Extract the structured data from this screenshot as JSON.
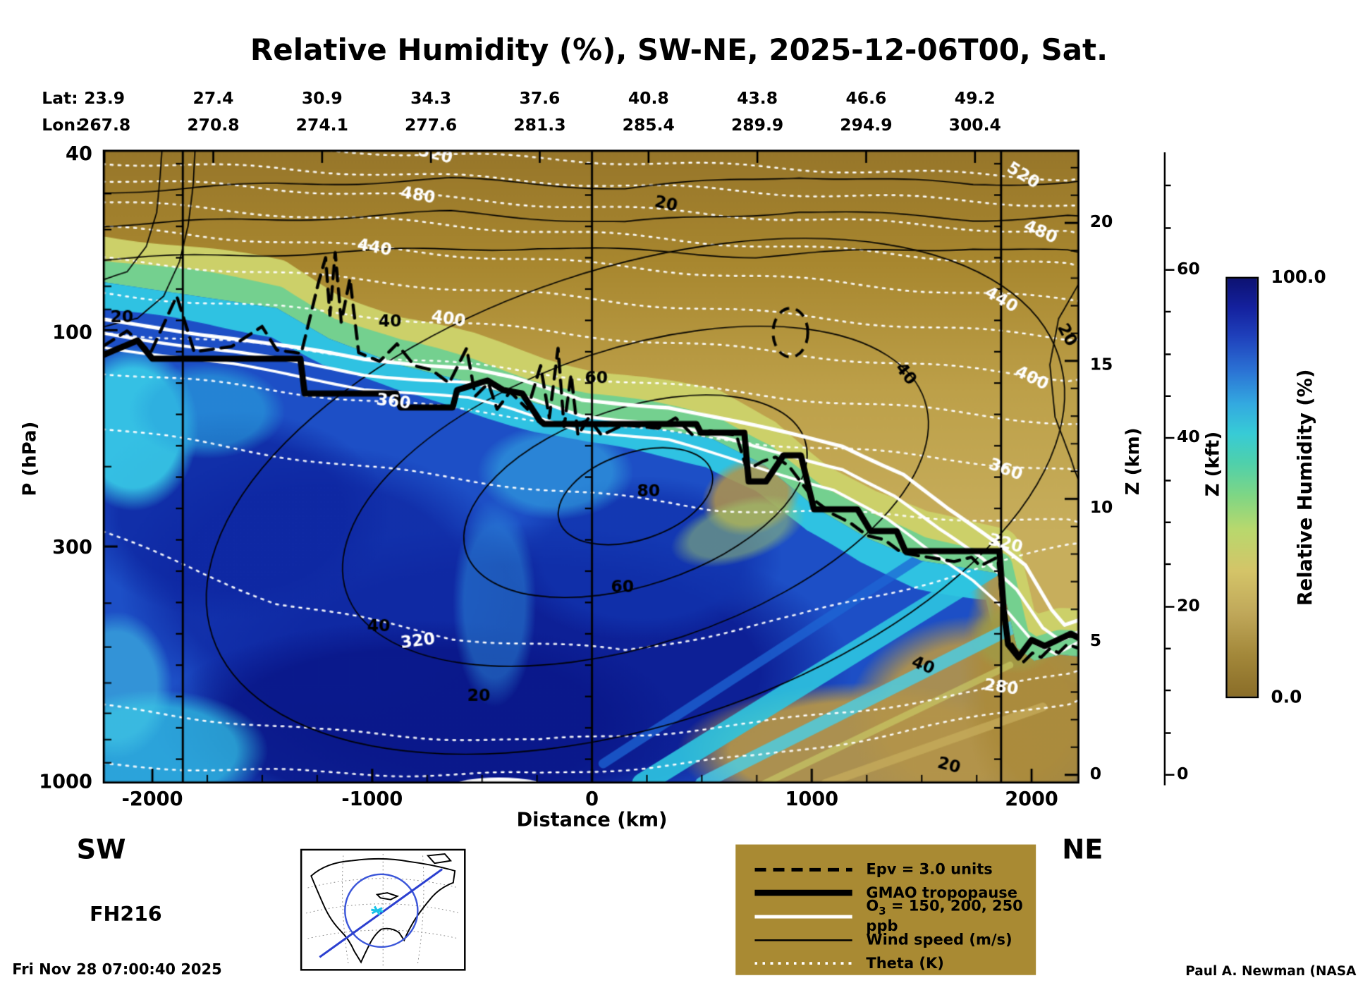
{
  "title": "Relative Humidity (%), SW-NE, 2025-12-06T00, Sat.",
  "header": {
    "lat_label": "Lat:",
    "lon_label": "Lon:",
    "lat": [
      "23.9",
      "27.4",
      "30.9",
      "34.3",
      "37.6",
      "40.8",
      "43.8",
      "46.6",
      "49.2"
    ],
    "lon": [
      "267.8",
      "270.8",
      "274.1",
      "277.6",
      "281.3",
      "285.4",
      "289.9",
      "294.9",
      "300.4"
    ]
  },
  "axes": {
    "y_left_label": "P (hPa)",
    "p_ticks": [
      "40",
      "100",
      "300",
      "1000"
    ],
    "x_label": "Distance (km)",
    "x_ticks": [
      "-2000",
      "-1000",
      "0",
      "1000",
      "2000"
    ],
    "z_km_label": "Z (km)",
    "z_km_ticks": [
      "20",
      "15",
      "10",
      "5",
      "0"
    ],
    "z_kft_label": "Z (kft)",
    "z_kft_ticks": [
      "60",
      "40",
      "20",
      "0"
    ]
  },
  "colorbar": {
    "label": "Relative Humidity (%)",
    "max": "100.0",
    "min": "0.0",
    "stops": [
      [
        0.0,
        "#8a6d28"
      ],
      [
        0.1,
        "#a3883a"
      ],
      [
        0.2,
        "#c0a85a"
      ],
      [
        0.3,
        "#d4c468"
      ],
      [
        0.4,
        "#b8d86d"
      ],
      [
        0.48,
        "#7fd684"
      ],
      [
        0.56,
        "#4ed0ac"
      ],
      [
        0.63,
        "#37cbd6"
      ],
      [
        0.7,
        "#33a9e0"
      ],
      [
        0.78,
        "#2b72d4"
      ],
      [
        0.86,
        "#1f41bc"
      ],
      [
        0.93,
        "#14219e"
      ],
      [
        1.0,
        "#0d1272"
      ]
    ]
  },
  "corners": {
    "sw": "SW",
    "ne": "NE",
    "fh": "FH216",
    "timestamp": "Fri Nov 28 07:00:40 2025",
    "credit": "Paul A. Newman (NASA"
  },
  "legend": {
    "bg_color": "#a98a33",
    "items": [
      {
        "label": "Epv = 3.0 units"
      },
      {
        "label": "GMAO tropopause"
      },
      {
        "label_prefix": "O",
        "label_sub": "3",
        "label_rest": " = 150, 200, 250 ppb"
      },
      {
        "label": "Wind speed (m/s)"
      },
      {
        "label": "Theta (K)"
      }
    ]
  },
  "chart_data": {
    "type": "heatmap",
    "title": "Relative Humidity (%), SW-NE, 2025-12-06T00, Sat.",
    "xlabel": "Distance (km)",
    "ylabel": "P (hPa)",
    "x_range_km": [
      -2230,
      2220
    ],
    "x_ticks": [
      -2000,
      -1000,
      0,
      1000,
      2000
    ],
    "y_scale": "log-pressure",
    "p_ticks_hPa": [
      40,
      100,
      300,
      1000
    ],
    "z_km_ticks": [
      0,
      5,
      10,
      15,
      20
    ],
    "z_kft_ticks": [
      0,
      20,
      40,
      60
    ],
    "waypoint_lines_km": [
      -1861,
      0,
      1861
    ],
    "top_axis": {
      "lat": [
        23.9,
        27.4,
        30.9,
        34.3,
        37.6,
        40.8,
        43.8,
        46.6,
        49.2
      ],
      "lon": [
        267.8,
        270.8,
        274.1,
        277.6,
        281.3,
        285.4,
        289.9,
        294.9,
        300.4
      ]
    },
    "colorbar": {
      "label": "Relative Humidity (%)",
      "min": 0,
      "max": 100
    },
    "contour_levels": {
      "theta_K": [
        280,
        300,
        320,
        340,
        360,
        380,
        400,
        420,
        440,
        460,
        480,
        500,
        520
      ],
      "wind_speed_ms": [
        20,
        40,
        60,
        80
      ],
      "o3_ppb": [
        150,
        200,
        250
      ],
      "epv_units": 3.0
    },
    "tropopause_profile_km_hPa": [
      [
        -2230,
        114
      ],
      [
        -1330,
        115
      ],
      [
        -890,
        138
      ],
      [
        -220,
        161
      ],
      [
        470,
        161
      ],
      [
        710,
        216
      ],
      [
        1010,
        248
      ],
      [
        1430,
        307
      ],
      [
        1850,
        307
      ],
      [
        1900,
        490
      ],
      [
        2220,
        480
      ]
    ],
    "rh_grid": {
      "distance_km": [
        -2250,
        -1800,
        -1350,
        -900,
        -450,
        0,
        450,
        900,
        1350,
        1800,
        2250
      ],
      "pressure_hPa": [
        50,
        70,
        100,
        150,
        200,
        300,
        400,
        500,
        700,
        850,
        1000
      ],
      "rh_percent": [
        [
          2,
          3,
          3,
          3,
          3,
          3,
          3,
          3,
          3,
          3,
          3
        ],
        [
          35,
          20,
          8,
          5,
          4,
          4,
          4,
          4,
          4,
          4,
          4
        ],
        [
          60,
          45,
          30,
          15,
          8,
          5,
          5,
          5,
          5,
          5,
          5
        ],
        [
          85,
          75,
          60,
          45,
          30,
          40,
          10,
          6,
          5,
          5,
          5
        ],
        [
          95,
          92,
          90,
          85,
          70,
          80,
          60,
          20,
          8,
          5,
          5
        ],
        [
          90,
          95,
          100,
          100,
          95,
          100,
          95,
          75,
          60,
          10,
          6
        ],
        [
          95,
          98,
          100,
          100,
          100,
          100,
          95,
          90,
          70,
          20,
          10
        ],
        [
          100,
          100,
          100,
          100,
          100,
          100,
          95,
          85,
          50,
          30,
          20
        ],
        [
          95,
          100,
          100,
          100,
          100,
          100,
          90,
          60,
          35,
          25,
          30
        ],
        [
          80,
          90,
          95,
          100,
          95,
          95,
          80,
          50,
          20,
          15,
          25
        ],
        [
          70,
          80,
          90,
          95,
          90,
          90,
          70,
          40,
          25,
          20,
          30
        ]
      ]
    },
    "annotations": {
      "theta": [
        {
          "t": "520",
          "x": 382,
          "y": 6,
          "r": 14
        },
        {
          "t": "520",
          "x": 1057,
          "y": 30,
          "r": 32
        },
        {
          "t": "480",
          "x": 362,
          "y": 53,
          "r": 10
        },
        {
          "t": "480",
          "x": 1077,
          "y": 95,
          "r": 24
        },
        {
          "t": "440",
          "x": 312,
          "y": 113,
          "r": 10
        },
        {
          "t": "440",
          "x": 1032,
          "y": 173,
          "r": 30
        },
        {
          "t": "400",
          "x": 397,
          "y": 195,
          "r": 9
        },
        {
          "t": "400",
          "x": 1067,
          "y": 263,
          "r": 26
        },
        {
          "t": "360",
          "x": 334,
          "y": 290,
          "r": 7
        },
        {
          "t": "360",
          "x": 1037,
          "y": 368,
          "r": 20
        },
        {
          "t": "320",
          "x": 362,
          "y": 565,
          "r": -7
        },
        {
          "t": "320",
          "x": 1037,
          "y": 453,
          "r": 14
        },
        {
          "t": "280",
          "x": 1032,
          "y": 618,
          "r": 8
        }
      ],
      "wind": [
        {
          "t": "20",
          "x": 22,
          "y": 193,
          "r": 0
        },
        {
          "t": "20",
          "x": 647,
          "y": 63,
          "r": 12
        },
        {
          "t": "20",
          "x": 1107,
          "y": 213,
          "r": 62
        },
        {
          "t": "20",
          "x": 432,
          "y": 628,
          "r": 0
        },
        {
          "t": "20",
          "x": 972,
          "y": 708,
          "r": 14
        },
        {
          "t": "40",
          "x": 330,
          "y": 198,
          "r": 0
        },
        {
          "t": "40",
          "x": 317,
          "y": 548,
          "r": 0
        },
        {
          "t": "40",
          "x": 922,
          "y": 258,
          "r": 52
        },
        {
          "t": "40",
          "x": 942,
          "y": 593,
          "r": 22
        },
        {
          "t": "60",
          "x": 567,
          "y": 263,
          "r": 0
        },
        {
          "t": "60",
          "x": 597,
          "y": 503,
          "r": 0
        },
        {
          "t": "80",
          "x": 627,
          "y": 393,
          "r": 0
        }
      ]
    }
  }
}
